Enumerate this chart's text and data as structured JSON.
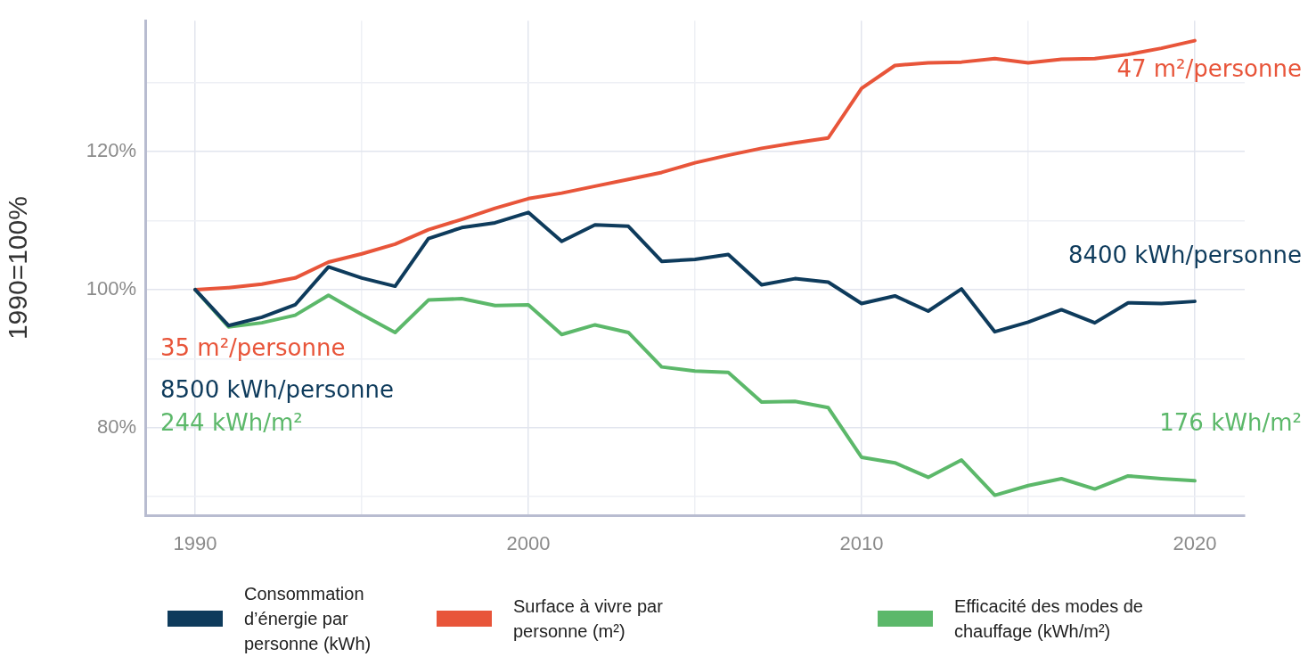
{
  "chart_data": {
    "type": "line",
    "ylabel": "1990=100%",
    "x": [
      1990,
      1991,
      1992,
      1993,
      1994,
      1995,
      1996,
      1997,
      1998,
      1999,
      2000,
      2001,
      2002,
      2003,
      2004,
      2005,
      2006,
      2007,
      2008,
      2009,
      2010,
      2011,
      2012,
      2013,
      2014,
      2015,
      2016,
      2017,
      2018,
      2019,
      2020
    ],
    "series": [
      {
        "name": "Consommation d’énergie par personne (kWh)",
        "color": "#0e3b5c",
        "values": [
          100,
          94.8,
          96,
          97.8,
          103.3,
          101.7,
          100.5,
          107.4,
          109,
          109.7,
          111.2,
          107,
          109.4,
          109.2,
          104.1,
          104.4,
          105.1,
          100.7,
          101.6,
          101.1,
          98,
          99.1,
          96.9,
          100.1,
          93.9,
          95.3,
          97.1,
          95.2,
          98.1,
          98,
          98.3
        ]
      },
      {
        "name": "Surface à vivre par personne (m²)",
        "color": "#e8553a",
        "values": [
          100,
          100.3,
          100.8,
          101.7,
          104,
          105.2,
          106.6,
          108.7,
          110.2,
          111.8,
          113.2,
          114,
          115,
          116,
          117,
          118.4,
          119.5,
          120.5,
          121.3,
          122,
          129.2,
          132.5,
          132.9,
          133,
          133.5,
          132.9,
          133.4,
          133.5,
          134.1,
          135,
          136.1
        ]
      },
      {
        "name": "Efficacité des modes de chauffage (kWh/m²)",
        "color": "#5cb86a",
        "values": [
          100,
          94.6,
          95.2,
          96.3,
          99.2,
          96.4,
          93.8,
          98.5,
          98.7,
          97.7,
          97.8,
          93.5,
          94.9,
          93.8,
          88.8,
          88.2,
          88,
          83.7,
          83.8,
          82.9,
          75.7,
          74.9,
          72.8,
          75.3,
          70.2,
          71.6,
          72.6,
          71.1,
          73,
          72.6,
          72.3
        ]
      }
    ],
    "annotations": [
      "8500 kWh/personne",
      "35 m²/personne",
      "244 kWh/m²",
      "8400 kWh/personne",
      "47 m²/personne",
      "176 kWh/m²"
    ],
    "xlim": [
      1988.5,
      2021.5
    ],
    "xticks": [
      1990,
      {
        "value": 1995,
        "label": null
      },
      2000,
      {
        "value": 2005,
        "label": null
      },
      2010,
      {
        "value": 2015,
        "label": null
      },
      2020
    ],
    "ylim": [
      67.3,
      139
    ],
    "yticks": [
      {
        "value": 70,
        "label": null
      },
      {
        "value": 80,
        "label": "80%"
      },
      {
        "value": 90,
        "label": null
      },
      {
        "value": 100,
        "label": "100%"
      },
      {
        "value": 110,
        "label": null
      },
      {
        "value": 120,
        "label": "120%"
      },
      {
        "value": 130,
        "label": null
      }
    ],
    "grid": true,
    "legend": "bottom",
    "marker": "none",
    "line_style": "solid"
  }
}
